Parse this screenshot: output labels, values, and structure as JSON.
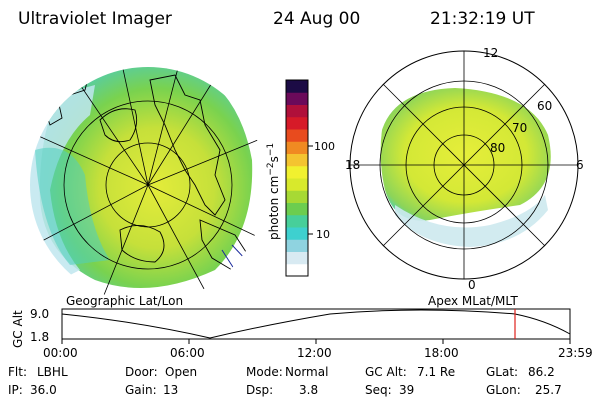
{
  "header": {
    "title": "Ultraviolet Imager",
    "date": "24 Aug 00",
    "time": "21:32:19 UT"
  },
  "panels": {
    "left_label": "Geographic Lat/Lon",
    "right_label": "Apex MLat/MLT"
  },
  "colorbar": {
    "label_html": "photon cm",
    "label_sup1": "−2",
    "label_mid": "s",
    "label_sup2": "−1",
    "ticks": [
      "100",
      "10"
    ],
    "scale": "log",
    "colors": [
      "#ffffff",
      "#d8eaf2",
      "#8fd3e0",
      "#3ed0cf",
      "#47cf9a",
      "#6ccd4f",
      "#a7d934",
      "#d8e92c",
      "#f1f12f",
      "#f4c430",
      "#f08a22",
      "#e84b1e",
      "#d61a28",
      "#b0103a",
      "#6b0a5a",
      "#1c0b45"
    ]
  },
  "polar_plot": {
    "mlt_labels": {
      "top": "12",
      "left": "18",
      "right": "6",
      "bottom": "0"
    },
    "lat_labels": [
      "60",
      "70",
      "80"
    ],
    "oval_color": "#e2ee3a"
  },
  "altitude_plot": {
    "ylabel": "GC Alt",
    "yticks": [
      "9.0",
      "1.8"
    ],
    "xticks": [
      "00:00",
      "06:00",
      "12:00",
      "18:00",
      "23:59"
    ],
    "current_time_marker_color": "#e0201c"
  },
  "status": {
    "row1": [
      {
        "key": "Flt:",
        "value": "LBHL"
      },
      {
        "key": "Door:",
        "value": "Open"
      },
      {
        "key": "Mode:",
        "value": "Normal"
      },
      {
        "key": "GC Alt:",
        "value": "7.1 Re"
      },
      {
        "key": "GLat:",
        "value": "86.2"
      }
    ],
    "row2": [
      {
        "key": "IP:",
        "value": "36.0"
      },
      {
        "key": "Gain:",
        "value": "13"
      },
      {
        "key": "Dsp:",
        "value": "3.8"
      },
      {
        "key": "Seq:",
        "value": "39"
      },
      {
        "key": "GLon:",
        "value": "25.7"
      }
    ]
  }
}
